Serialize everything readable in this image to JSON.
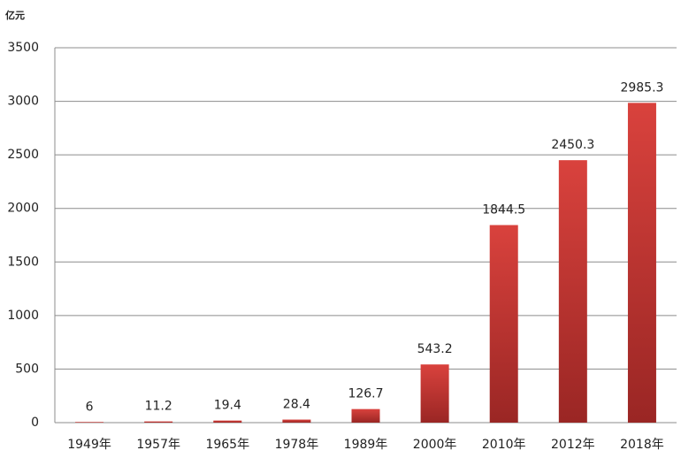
{
  "chart_data": {
    "type": "bar",
    "y_label": "亿元",
    "categories": [
      "1949年",
      "1957年",
      "1965年",
      "1978年",
      "1989年",
      "2000年",
      "2010年",
      "2012年",
      "2018年"
    ],
    "values": [
      6,
      11.2,
      19.4,
      28.4,
      126.7,
      543.2,
      1844.5,
      2450.3,
      2985.3
    ],
    "color": "#d9423d",
    "ylim": [
      0,
      3500
    ],
    "yticks": [
      0,
      500,
      1000,
      1500,
      2000,
      2500,
      3000,
      3500
    ],
    "grid": true
  }
}
